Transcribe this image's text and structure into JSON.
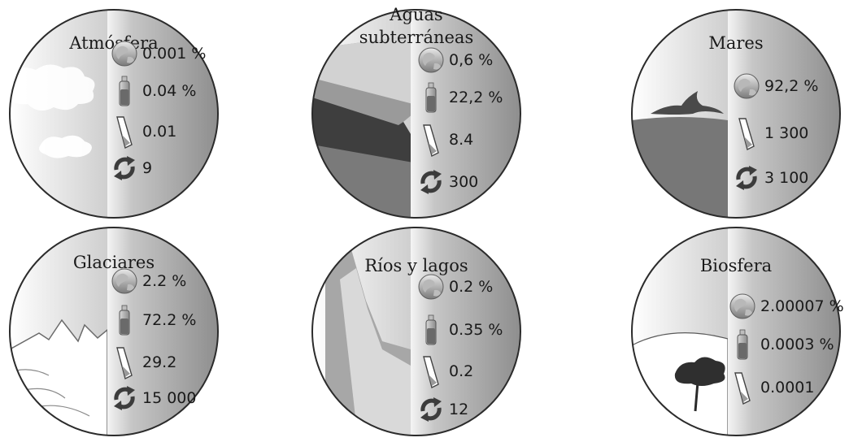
{
  "reservoirs": [
    {
      "id": "atmosfera",
      "title_lines": [
        "Atmósfera"
      ],
      "values": [
        {
          "icon": "globe-icon",
          "text": "0.001 %"
        },
        {
          "icon": "bottle-icon",
          "text": "0.04 %"
        },
        {
          "icon": "tube-icon",
          "text": "0.01"
        },
        {
          "icon": "cycle-icon",
          "text": "9"
        }
      ]
    },
    {
      "id": "aguas-subterraneas",
      "title_lines": [
        "Aguas",
        "subterráneas"
      ],
      "values": [
        {
          "icon": "globe-icon",
          "text": "0,6 %"
        },
        {
          "icon": "bottle-icon",
          "text": "22,2 %"
        },
        {
          "icon": "tube-icon",
          "text": "8.4"
        },
        {
          "icon": "cycle-icon",
          "text": "300"
        }
      ]
    },
    {
      "id": "mares",
      "title_lines": [
        "Mares"
      ],
      "values": [
        {
          "icon": "globe-icon",
          "text": "92,2 %"
        },
        {
          "icon": "tube-icon",
          "text": "1 300"
        },
        {
          "icon": "cycle-icon",
          "text": "3 100"
        }
      ]
    },
    {
      "id": "glaciares",
      "title_lines": [
        "Glaciares"
      ],
      "values": [
        {
          "icon": "globe-icon",
          "text": "2.2 %"
        },
        {
          "icon": "bottle-icon",
          "text": "72.2 %"
        },
        {
          "icon": "tube-icon",
          "text": "29.2"
        },
        {
          "icon": "cycle-icon",
          "text": "15 000"
        }
      ]
    },
    {
      "id": "rios-y-lagos",
      "title_lines": [
        "Ríos y lagos"
      ],
      "values": [
        {
          "icon": "globe-icon",
          "text": "0.2 %"
        },
        {
          "icon": "bottle-icon",
          "text": "0.35 %"
        },
        {
          "icon": "tube-icon",
          "text": "0.2"
        },
        {
          "icon": "cycle-icon",
          "text": "12"
        }
      ]
    },
    {
      "id": "biosfera",
      "title_lines": [
        "Biosfera"
      ],
      "values": [
        {
          "icon": "globe-icon",
          "text": "2.00007 %"
        },
        {
          "icon": "bottle-icon",
          "text": "0.0003 %"
        },
        {
          "icon": "tube-icon",
          "text": "0.0001"
        }
      ]
    }
  ]
}
